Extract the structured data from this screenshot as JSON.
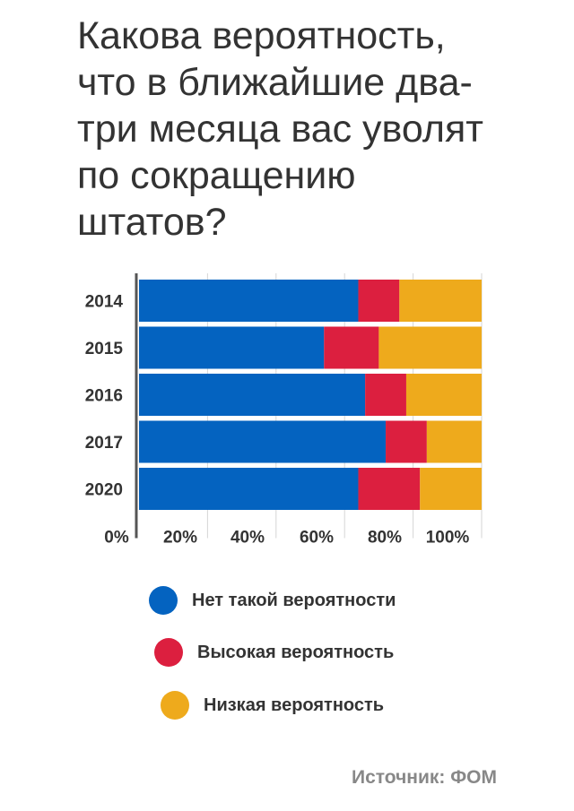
{
  "title_lines": [
    "Какова вероятность,",
    "что в ближайшие два-",
    "три месяца вас уволят",
    "по сокращению",
    "штатов?"
  ],
  "chart_data": {
    "type": "bar",
    "orientation": "horizontal",
    "stacked": true,
    "categories": [
      "2014",
      "2015",
      "2016",
      "2017",
      "2020"
    ],
    "series": [
      {
        "name": "Нет такой вероятности",
        "color": "#0463c0",
        "values": [
          64,
          54,
          66,
          72,
          64
        ]
      },
      {
        "name": "Высокая вероятность",
        "color": "#dc1f3f",
        "values": [
          12,
          16,
          12,
          12,
          18
        ]
      },
      {
        "name": "Низкая вероятность",
        "color": "#eeaa1c",
        "values": [
          24,
          30,
          22,
          16,
          18
        ]
      }
    ],
    "x_ticks": [
      "0%",
      "20%",
      "40%",
      "60%",
      "80%",
      "100%"
    ],
    "xlim": [
      0,
      100
    ],
    "legend_position": "bottom",
    "grid": true
  },
  "source": "Источник: ФОМ"
}
